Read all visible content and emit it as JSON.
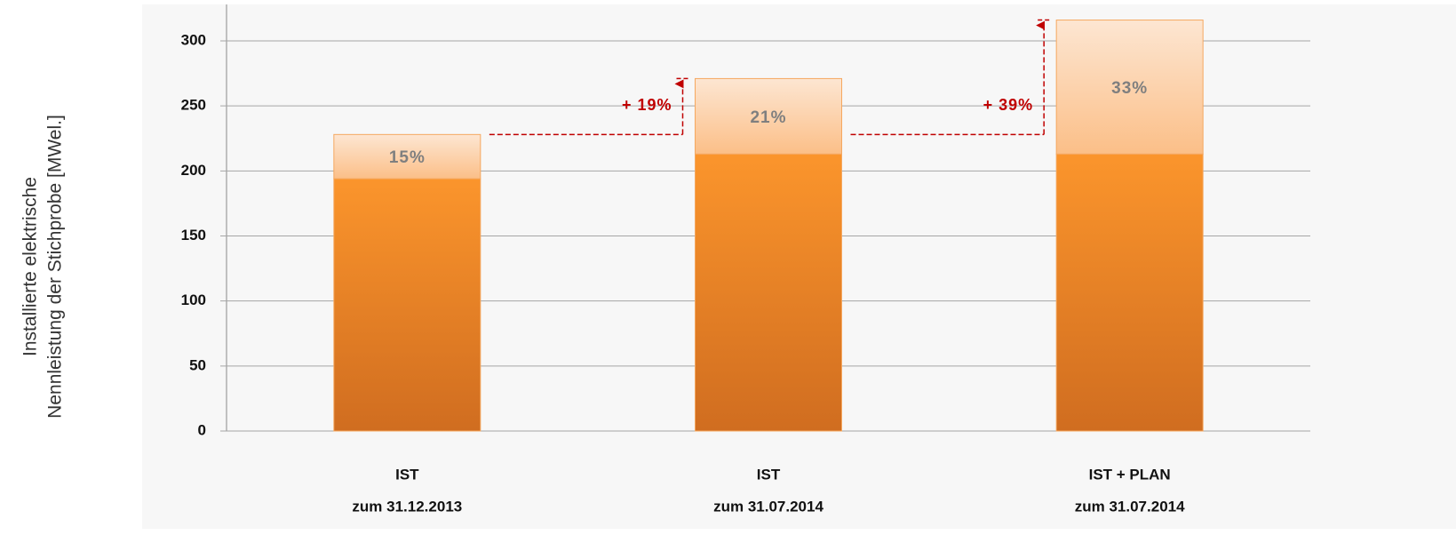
{
  "chart_data": {
    "type": "stacked_bar",
    "y_label": [
      "Installierte elektrische",
      "Nennleistung der Stichprobe [MWel.]"
    ],
    "categories": [
      [
        "IST",
        "zum 31.12.2013"
      ],
      [
        "IST",
        "zum 31.07.2014"
      ],
      [
        "IST + PLAN",
        "zum 31.07.2014"
      ]
    ],
    "series": [
      {
        "color": "#f08a24",
        "values": [
          194,
          213,
          213
        ]
      },
      {
        "color": "#fcd2ac",
        "values": [
          34,
          58,
          103
        ]
      }
    ],
    "segment_labels": [
      "15%",
      "21%",
      "33%"
    ],
    "growth_labels": [
      "+ 19%",
      "+ 39%"
    ],
    "ylim": [
      0,
      328
    ],
    "yticks": [
      0,
      50,
      100,
      150,
      200,
      250,
      300
    ],
    "grid": true
  }
}
